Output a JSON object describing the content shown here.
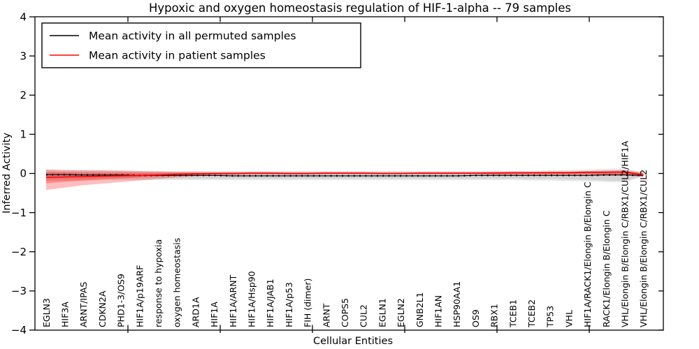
{
  "chart_data": {
    "type": "line",
    "title": "Hypoxic and oxygen homeostasis regulation of HIF-1-alpha -- 79 samples",
    "xlabel": "Cellular Entities",
    "ylabel": "Inferred Activity",
    "ylim": [
      -4,
      4
    ],
    "yticks": [
      4,
      3,
      2,
      1,
      0,
      -1,
      -2,
      -3,
      -4
    ],
    "grid": false,
    "legend": {
      "position": "upper left",
      "entries": [
        {
          "label": "Mean activity in all permuted samples",
          "color": "#000000"
        },
        {
          "label": "Mean activity in patient samples",
          "color": "#ff0000"
        }
      ]
    },
    "categories": [
      "EGLN3",
      "HIF3A",
      "ARNT/IPAS",
      "CDKN2A",
      "PHD1-3/OS9",
      "HIF1A/p19ARF",
      "response to hypoxia",
      "oxygen homeostasis",
      "ARD1A",
      "HIF1A",
      "HIF1A/ARNT",
      "HIF1A/Hsp90",
      "HIF1A/JAB1",
      "HIF1A/p53",
      "FIH (dimer)",
      "ARNT",
      "COPS5",
      "CUL2",
      "EGLN1",
      "EGLN2",
      "GNB2L1",
      "HIF1AN",
      "HSP90AA1",
      "OS9",
      "RBX1",
      "TCEB1",
      "TCEB2",
      "TP53",
      "VHL",
      "HIF1A/RACK1/Elongin B/Elongin C",
      "RACK1/Elongin B/Elongin C",
      "VHL/Elongin B/Elongin C/RBX1/CUL2/HIF1A",
      "VHL/Elongin B/Elongin C/RBX1/CUL2"
    ],
    "series": [
      {
        "name": "Mean activity in all permuted samples",
        "color": "#000000",
        "values": [
          -0.03,
          -0.03,
          -0.04,
          -0.04,
          -0.04,
          -0.05,
          -0.05,
          -0.05,
          -0.05,
          -0.05,
          -0.06,
          -0.06,
          -0.06,
          -0.06,
          -0.06,
          -0.06,
          -0.06,
          -0.06,
          -0.06,
          -0.06,
          -0.06,
          -0.06,
          -0.06,
          -0.05,
          -0.05,
          -0.05,
          -0.05,
          -0.05,
          -0.05,
          -0.05,
          -0.04,
          -0.04,
          -0.05
        ]
      },
      {
        "name": "Mean activity in patient samples",
        "color": "#ff0000",
        "values": [
          -0.1,
          -0.09,
          -0.08,
          -0.07,
          -0.06,
          -0.05,
          -0.04,
          -0.02,
          -0.01,
          0.0,
          0.0,
          0.01,
          0.01,
          0.0,
          0.0,
          0.01,
          0.01,
          0.01,
          0.0,
          0.0,
          0.01,
          0.01,
          0.01,
          0.01,
          0.01,
          0.02,
          0.02,
          0.02,
          0.02,
          0.03,
          0.03,
          0.04,
          -0.04
        ]
      }
    ],
    "bands": [
      {
        "name": "permuted-range-outer",
        "color": "#888888",
        "opacity": 0.2,
        "hi": [
          0.1,
          0.09,
          0.09,
          0.08,
          0.08,
          0.07,
          0.07,
          0.06,
          0.06,
          0.06,
          0.06,
          0.06,
          0.06,
          0.06,
          0.06,
          0.06,
          0.06,
          0.06,
          0.06,
          0.06,
          0.06,
          0.06,
          0.06,
          0.06,
          0.07,
          0.07,
          0.07,
          0.08,
          0.09,
          0.1,
          0.12,
          0.13,
          0.03
        ],
        "lo": [
          -0.19,
          -0.18,
          -0.18,
          -0.17,
          -0.17,
          -0.17,
          -0.17,
          -0.17,
          -0.17,
          -0.17,
          -0.17,
          -0.17,
          -0.17,
          -0.17,
          -0.17,
          -0.17,
          -0.17,
          -0.17,
          -0.17,
          -0.17,
          -0.17,
          -0.17,
          -0.17,
          -0.17,
          -0.17,
          -0.17,
          -0.18,
          -0.18,
          -0.19,
          -0.2,
          -0.22,
          -0.23,
          -0.08
        ]
      },
      {
        "name": "permuted-range-inner",
        "color": "#888888",
        "opacity": 0.2,
        "hi": [
          0.06,
          0.05,
          0.05,
          0.04,
          0.04,
          0.03,
          0.03,
          0.02,
          0.02,
          0.02,
          0.02,
          0.02,
          0.02,
          0.02,
          0.02,
          0.02,
          0.02,
          0.02,
          0.02,
          0.02,
          0.02,
          0.02,
          0.02,
          0.02,
          0.03,
          0.03,
          0.03,
          0.04,
          0.05,
          0.06,
          0.08,
          0.09,
          0.01
        ],
        "lo": [
          -0.15,
          -0.14,
          -0.14,
          -0.13,
          -0.13,
          -0.13,
          -0.13,
          -0.13,
          -0.13,
          -0.13,
          -0.13,
          -0.13,
          -0.13,
          -0.13,
          -0.13,
          -0.13,
          -0.13,
          -0.13,
          -0.13,
          -0.13,
          -0.13,
          -0.13,
          -0.13,
          -0.13,
          -0.13,
          -0.13,
          -0.14,
          -0.14,
          -0.15,
          -0.16,
          -0.18,
          -0.19,
          -0.06
        ]
      },
      {
        "name": "patient-range-outer",
        "color": "#ff0000",
        "opacity": 0.26,
        "hi": [
          0.1,
          0.09,
          0.08,
          0.08,
          0.07,
          0.06,
          0.05,
          0.04,
          0.04,
          0.03,
          0.03,
          0.03,
          0.03,
          0.03,
          0.03,
          0.03,
          0.03,
          0.03,
          0.03,
          0.03,
          0.03,
          0.03,
          0.03,
          0.03,
          0.04,
          0.04,
          0.04,
          0.05,
          0.05,
          0.06,
          0.07,
          0.08,
          0.02
        ],
        "lo": [
          -0.42,
          -0.36,
          -0.3,
          -0.26,
          -0.22,
          -0.18,
          -0.14,
          -0.1,
          -0.07,
          -0.05,
          -0.04,
          -0.03,
          -0.03,
          -0.03,
          -0.03,
          -0.02,
          -0.02,
          -0.02,
          -0.02,
          -0.02,
          -0.02,
          -0.02,
          -0.02,
          -0.02,
          -0.03,
          -0.03,
          -0.03,
          -0.03,
          -0.03,
          -0.03,
          -0.04,
          -0.05,
          -0.09
        ]
      },
      {
        "name": "patient-range-inner",
        "color": "#ff0000",
        "opacity": 0.28,
        "hi": [
          0.03,
          0.03,
          0.02,
          0.02,
          0.02,
          0.02,
          0.02,
          0.02,
          0.02,
          0.02,
          0.02,
          0.02,
          0.02,
          0.02,
          0.02,
          0.02,
          0.02,
          0.02,
          0.02,
          0.02,
          0.02,
          0.02,
          0.02,
          0.02,
          0.02,
          0.03,
          0.03,
          0.03,
          0.03,
          0.04,
          0.04,
          0.05,
          0.0
        ],
        "lo": [
          -0.25,
          -0.21,
          -0.18,
          -0.15,
          -0.13,
          -0.1,
          -0.08,
          -0.06,
          -0.04,
          -0.03,
          -0.02,
          -0.01,
          -0.01,
          -0.01,
          -0.01,
          -0.01,
          -0.01,
          -0.01,
          -0.01,
          -0.01,
          -0.01,
          -0.01,
          -0.01,
          -0.01,
          -0.02,
          -0.02,
          -0.02,
          -0.02,
          -0.02,
          -0.02,
          -0.03,
          -0.03,
          -0.07
        ]
      }
    ]
  },
  "colors": {
    "frame": "#000000",
    "background": "#ffffff",
    "permuted_line": "#000000",
    "patient_line": "#ff0000"
  }
}
